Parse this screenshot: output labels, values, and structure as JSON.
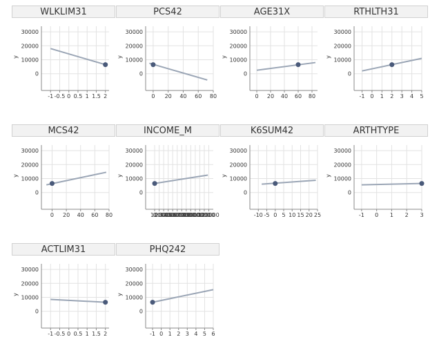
{
  "chart_data": {
    "type": "line",
    "ylabel": "y",
    "y_ticks": [
      0,
      10000,
      20000,
      30000
    ],
    "ylim": [
      -12000,
      34000
    ],
    "grid": true,
    "line_color": "#9aa5b5",
    "point_color": "#4a5a7a",
    "facets": [
      {
        "title": "WLKLIM31",
        "xlim": [
          -1.5,
          2.2
        ],
        "x_ticks": [
          -1,
          -0.5,
          0,
          0.5,
          1,
          1.5,
          2
        ],
        "tick_labels": [
          "-1",
          "-0.5",
          "0",
          "0.5",
          "1",
          "1.5",
          "2"
        ],
        "line": {
          "x": [
            -1,
            2
          ],
          "y": [
            18000,
            6500
          ]
        },
        "point": {
          "x": 2,
          "y": 6500
        }
      },
      {
        "title": "PCS42",
        "xlim": [
          -10,
          80
        ],
        "x_ticks": [
          0,
          20,
          40,
          60,
          80
        ],
        "tick_labels": [
          "0",
          "20",
          "40",
          "60",
          "80"
        ],
        "line": {
          "x": [
            -5,
            72
          ],
          "y": [
            7500,
            -4500
          ]
        },
        "point": {
          "x": 0,
          "y": 6500
        }
      },
      {
        "title": "AGE31X",
        "xlim": [
          -10,
          88
        ],
        "x_ticks": [
          0,
          20,
          40,
          60,
          80
        ],
        "tick_labels": [
          "0",
          "20",
          "40",
          "60",
          "80"
        ],
        "line": {
          "x": [
            0,
            85
          ],
          "y": [
            2500,
            8000
          ]
        },
        "point": {
          "x": 60,
          "y": 6500
        }
      },
      {
        "title": "RTHLTH31",
        "xlim": [
          -1.8,
          5
        ],
        "x_ticks": [
          -1,
          0,
          1,
          2,
          3,
          4,
          5
        ],
        "tick_labels": [
          "-1",
          "0",
          "1",
          "2",
          "3",
          "4",
          "5"
        ],
        "line": {
          "x": [
            -1,
            5
          ],
          "y": [
            2000,
            11000
          ]
        },
        "point": {
          "x": 2,
          "y": 6500
        }
      },
      {
        "title": "MCS42",
        "xlim": [
          -15,
          80
        ],
        "x_ticks": [
          0,
          20,
          40,
          60,
          80
        ],
        "tick_labels": [
          "0",
          "20",
          "40",
          "60",
          "80"
        ],
        "line": {
          "x": [
            -8,
            76
          ],
          "y": [
            5500,
            14500
          ]
        },
        "point": {
          "x": 0,
          "y": 6500
        }
      },
      {
        "title": "INCOME_M",
        "xlim": [
          -20000,
          130000
        ],
        "x_ticks": [
          0,
          10000,
          20000,
          30000,
          40000,
          50000,
          60000,
          70000,
          80000,
          90000,
          100000,
          110000,
          120000
        ],
        "tick_labels": [
          "0",
          "10000",
          "20000",
          "30000",
          "40000",
          "50000",
          "60000",
          "70000",
          "80000",
          "90000",
          "100000",
          "110000",
          "120000"
        ],
        "line": {
          "x": [
            0,
            118000
          ],
          "y": [
            6500,
            12500
          ]
        },
        "point": {
          "x": 0,
          "y": 6500
        }
      },
      {
        "title": "K6SUM42",
        "xlim": [
          -15,
          25
        ],
        "x_ticks": [
          -10,
          -5,
          0,
          5,
          10,
          15,
          20,
          25
        ],
        "tick_labels": [
          "-10",
          "-5",
          "0",
          "5",
          "10",
          "15",
          "20",
          "25"
        ],
        "line": {
          "x": [
            -8,
            24
          ],
          "y": [
            6000,
            8800
          ]
        },
        "point": {
          "x": 0,
          "y": 6500
        }
      },
      {
        "title": "ARTHTYPE",
        "xlim": [
          -1.5,
          3
        ],
        "x_ticks": [
          -1,
          0,
          1,
          2,
          3
        ],
        "tick_labels": [
          "-1",
          "0",
          "1",
          "2",
          "3"
        ],
        "line": {
          "x": [
            -1,
            3
          ],
          "y": [
            5500,
            6500
          ]
        },
        "point": {
          "x": 3,
          "y": 6500
        }
      },
      {
        "title": "ACTLIM31",
        "xlim": [
          -1.5,
          2.2
        ],
        "x_ticks": [
          -1,
          -0.5,
          0,
          0.5,
          1,
          1.5,
          2
        ],
        "tick_labels": [
          "-1",
          "-0.5",
          "0",
          "0.5",
          "1",
          "1.5",
          "2"
        ],
        "line": {
          "x": [
            -1,
            2
          ],
          "y": [
            8500,
            6500
          ]
        },
        "point": {
          "x": 2,
          "y": 6500
        }
      },
      {
        "title": "PHQ242",
        "xlim": [
          -1.8,
          6
        ],
        "x_ticks": [
          -1,
          0,
          1,
          2,
          3,
          4,
          5,
          6
        ],
        "tick_labels": [
          "-1",
          "0",
          "1",
          "2",
          "3",
          "4",
          "5",
          "6"
        ],
        "line": {
          "x": [
            -1,
            6
          ],
          "y": [
            6500,
            15500
          ]
        },
        "point": {
          "x": -1,
          "y": 6500
        }
      }
    ]
  }
}
